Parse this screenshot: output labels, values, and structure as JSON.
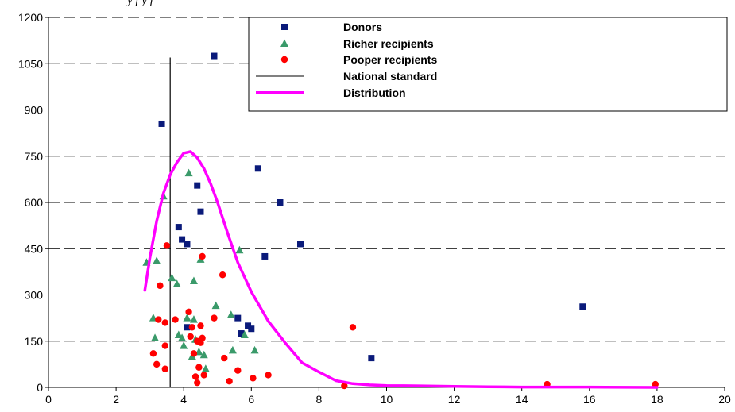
{
  "chart_data": {
    "type": "scatter",
    "title_fragment": "y                                    f                    y f",
    "xlim": [
      0,
      20
    ],
    "ylim": [
      0,
      1200
    ],
    "x_ticks": [
      "0",
      "2",
      "4",
      "6",
      "8",
      "10",
      "12",
      "14",
      "16",
      "18",
      "20"
    ],
    "y_ticks": [
      "0",
      "150",
      "300",
      "450",
      "600",
      "750",
      "900",
      "1050",
      "1200"
    ],
    "grid": "horizontal-dashed",
    "legend_position": "top-right",
    "legend": [
      "Donors",
      "Richer recipients",
      "Pooper recipients",
      "National standard",
      "Distribution"
    ],
    "colors": {
      "donors": "#0a1a7a",
      "richer": "#3a9a6a",
      "poorer": "#ff0000",
      "standard": "#000000",
      "distribution": "#ff00ff"
    },
    "series": [
      {
        "name": "Donors",
        "marker": "square",
        "points": [
          [
            3.35,
            855
          ],
          [
            4.9,
            1075
          ],
          [
            3.85,
            520
          ],
          [
            3.95,
            480
          ],
          [
            4.1,
            465
          ],
          [
            4.4,
            655
          ],
          [
            4.5,
            570
          ],
          [
            6.2,
            710
          ],
          [
            6.85,
            600
          ],
          [
            7.45,
            465
          ],
          [
            6.4,
            425
          ],
          [
            5.6,
            225
          ],
          [
            5.7,
            175
          ],
          [
            5.9,
            200
          ],
          [
            6.0,
            190
          ],
          [
            4.1,
            195
          ],
          [
            9.55,
            95
          ],
          [
            15.8,
            262
          ]
        ]
      },
      {
        "name": "Richer recipients",
        "marker": "triangle",
        "points": [
          [
            3.4,
            620
          ],
          [
            2.9,
            405
          ],
          [
            3.2,
            410
          ],
          [
            3.65,
            355
          ],
          [
            3.8,
            335
          ],
          [
            4.15,
            695
          ],
          [
            4.3,
            345
          ],
          [
            4.5,
            415
          ],
          [
            5.65,
            445
          ],
          [
            4.95,
            265
          ],
          [
            3.1,
            225
          ],
          [
            3.15,
            160
          ],
          [
            3.85,
            170
          ],
          [
            3.95,
            160
          ],
          [
            4.0,
            135
          ],
          [
            4.1,
            225
          ],
          [
            4.3,
            220
          ],
          [
            4.35,
            155
          ],
          [
            4.45,
            115
          ],
          [
            4.6,
            105
          ],
          [
            4.65,
            60
          ],
          [
            5.4,
            235
          ],
          [
            5.45,
            120
          ],
          [
            5.8,
            170
          ],
          [
            6.1,
            120
          ],
          [
            4.25,
            100
          ]
        ]
      },
      {
        "name": "Pooper recipients",
        "marker": "circle",
        "points": [
          [
            3.5,
            460
          ],
          [
            3.3,
            330
          ],
          [
            4.55,
            425
          ],
          [
            5.15,
            365
          ],
          [
            3.25,
            220
          ],
          [
            3.45,
            210
          ],
          [
            3.75,
            220
          ],
          [
            4.15,
            245
          ],
          [
            4.25,
            195
          ],
          [
            4.5,
            200
          ],
          [
            4.9,
            225
          ],
          [
            4.2,
            165
          ],
          [
            4.4,
            150
          ],
          [
            4.5,
            145
          ],
          [
            4.55,
            160
          ],
          [
            4.3,
            110
          ],
          [
            3.1,
            110
          ],
          [
            3.45,
            135
          ],
          [
            3.2,
            75
          ],
          [
            3.45,
            60
          ],
          [
            4.45,
            65
          ],
          [
            4.35,
            35
          ],
          [
            4.6,
            40
          ],
          [
            4.4,
            15
          ],
          [
            5.2,
            95
          ],
          [
            5.35,
            20
          ],
          [
            5.6,
            55
          ],
          [
            6.05,
            30
          ],
          [
            6.5,
            40
          ],
          [
            9.0,
            195
          ],
          [
            8.75,
            5
          ],
          [
            14.75,
            10
          ],
          [
            17.95,
            10
          ]
        ]
      }
    ],
    "national_standard": {
      "x": 3.6,
      "y_range": [
        0,
        1070
      ]
    },
    "distribution": {
      "x": [
        2.85,
        3.0,
        3.2,
        3.4,
        3.6,
        3.8,
        4.0,
        4.2,
        4.4,
        4.6,
        4.8,
        5.0,
        5.3,
        5.6,
        6.0,
        6.5,
        7.0,
        7.5,
        8.0,
        8.5,
        9.0,
        9.5,
        10.0,
        11.0,
        12.0,
        13.0,
        14.0,
        16.0,
        18.0
      ],
      "y": [
        315,
        420,
        540,
        630,
        690,
        730,
        760,
        765,
        745,
        710,
        660,
        600,
        500,
        405,
        310,
        215,
        145,
        80,
        50,
        22,
        12,
        8,
        6,
        5,
        3,
        2,
        1,
        1,
        0
      ]
    }
  }
}
